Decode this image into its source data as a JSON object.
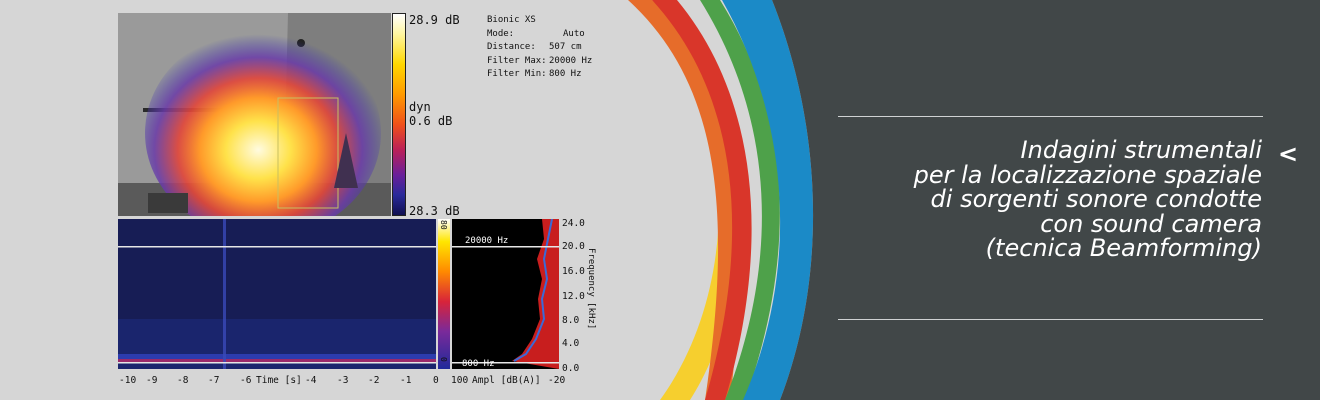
{
  "camera": {
    "scale_max": "28.9 dB",
    "scale_mid_label": "dyn",
    "scale_mid_value": "0.6 dB",
    "scale_min": "28.3 dB",
    "info": [
      {
        "key": "Bionic XS",
        "value": ""
      },
      {
        "key": "Mode:",
        "value": "Auto"
      },
      {
        "key": "Distance:",
        "value": "507 cm"
      },
      {
        "key": "Filter Max:",
        "value": "20000 Hz"
      },
      {
        "key": "Filter Min:",
        "value": "800 Hz"
      }
    ]
  },
  "spectrogram": {
    "x_ticks": [
      "-10",
      "-9",
      "-8",
      "-7",
      "-6",
      "-4",
      "-3",
      "-2",
      "-1",
      "0"
    ],
    "x_label": "Time [s]",
    "scale_top": "80",
    "scale_bottom": "0",
    "ampl_ticks": [
      "100",
      "-20"
    ],
    "ampl_label": "Ampl [dB(A)]",
    "filter_max_label": "20000 Hz",
    "filter_min_label": "800 Hz",
    "freq_ticks": [
      "24.0",
      "20.0",
      "16.0",
      "12.0",
      "8.0",
      "4.0",
      "0.0"
    ],
    "freq_label": "Frequency [kHz]"
  },
  "banner": {
    "title_lines": [
      "Indagini strumentali",
      "per la localizzazione spaziale",
      "di sorgenti sonore condotte",
      "con sound camera",
      "(tecnica Beamforming)"
    ],
    "chevron": "<"
  },
  "colors": {
    "dark_panel": "#414748",
    "blue_arc": "#1b8ac7",
    "green_arc": "#4ea14a",
    "red_arc": "#d9362a",
    "orange_arc": "#e66c2a",
    "yellow_arc": "#f6cf2e",
    "background": "#d6d6d6"
  }
}
